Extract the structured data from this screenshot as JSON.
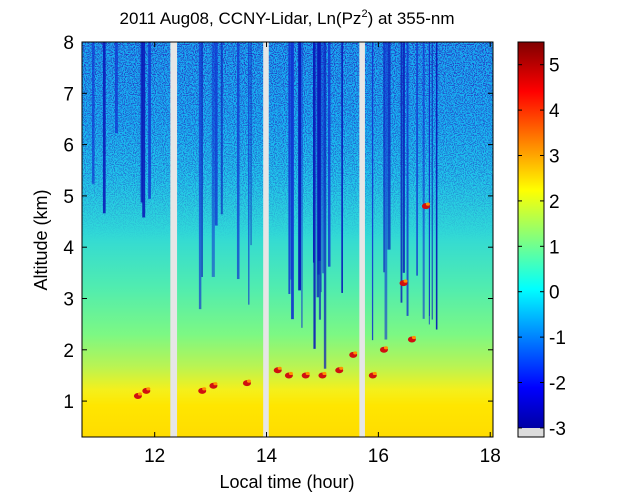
{
  "chart_data": {
    "type": "heatmap",
    "title": "2011 Aug08, CCNY-Lidar, Ln(Pz",
    "title_superscript": "2",
    "title_suffix": ") at 355-nm",
    "xlabel": "Local time (hour)",
    "ylabel": "Altitude (km)",
    "xlim": [
      10.7,
      18.05
    ],
    "ylim": [
      0.3,
      8
    ],
    "xticks": [
      12,
      14,
      16,
      18
    ],
    "yticks": [
      1,
      2,
      3,
      4,
      5,
      6,
      7,
      8
    ],
    "colorbar": {
      "range": [
        -3.2,
        5.5
      ],
      "ticks": [
        -3,
        -2,
        -1,
        0,
        1,
        2,
        3,
        4,
        5
      ],
      "colormap": "jet",
      "colors": [
        "#00008f",
        "#0000ff",
        "#0080ff",
        "#00ffff",
        "#80ff80",
        "#ffff00",
        "#ff8000",
        "#ff0000",
        "#800000"
      ]
    },
    "data_gaps_hours": [
      [
        12.28,
        12.4
      ],
      [
        13.94,
        14.04
      ],
      [
        15.66,
        15.76
      ]
    ],
    "cloud_base_km": [
      {
        "x": 11.7,
        "y": 1.1
      },
      {
        "x": 11.85,
        "y": 1.2
      },
      {
        "x": 12.85,
        "y": 1.2
      },
      {
        "x": 13.05,
        "y": 1.3
      },
      {
        "x": 13.65,
        "y": 1.35
      },
      {
        "x": 14.2,
        "y": 1.6
      },
      {
        "x": 14.4,
        "y": 1.5
      },
      {
        "x": 14.7,
        "y": 1.5
      },
      {
        "x": 15.0,
        "y": 1.5
      },
      {
        "x": 15.3,
        "y": 1.6
      },
      {
        "x": 15.55,
        "y": 1.9
      },
      {
        "x": 15.9,
        "y": 1.5
      },
      {
        "x": 16.1,
        "y": 2.0
      },
      {
        "x": 16.45,
        "y": 3.3
      },
      {
        "x": 16.6,
        "y": 2.2
      },
      {
        "x": 16.85,
        "y": 4.8
      }
    ]
  }
}
